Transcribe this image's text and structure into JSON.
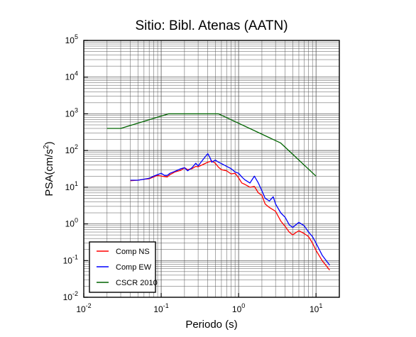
{
  "chart_data": {
    "type": "line",
    "title": "Sitio: Bibl. Atenas (AATN)",
    "xlabel": "Periodo (s)",
    "ylabel": {
      "base": "PSA(cm/s",
      "sup": "2",
      "tail": ")"
    },
    "xscale": "log",
    "yscale": "log",
    "xlim": [
      0.01,
      20
    ],
    "ylim": [
      0.01,
      100000
    ],
    "grid": true,
    "legend_position": "bottom-left",
    "x_ticks": [
      {
        "base": "10",
        "exp": "-2",
        "value": 0.01
      },
      {
        "base": "10",
        "exp": "-1",
        "value": 0.1
      },
      {
        "base": "10",
        "exp": "0",
        "value": 1
      },
      {
        "base": "10",
        "exp": "1",
        "value": 10
      }
    ],
    "y_ticks": [
      {
        "base": "10",
        "exp": "-2",
        "value": 0.01
      },
      {
        "base": "10",
        "exp": "-1",
        "value": 0.1
      },
      {
        "base": "10",
        "exp": "0",
        "value": 1
      },
      {
        "base": "10",
        "exp": "1",
        "value": 10
      },
      {
        "base": "10",
        "exp": "2",
        "value": 100
      },
      {
        "base": "10",
        "exp": "3",
        "value": 1000
      },
      {
        "base": "10",
        "exp": "4",
        "value": 10000
      },
      {
        "base": "10",
        "exp": "5",
        "value": 100000
      }
    ],
    "series": [
      {
        "name": "Comp NS",
        "color": "#ff0000",
        "points": [
          [
            0.04,
            15
          ],
          [
            0.05,
            15.5
          ],
          [
            0.06,
            16.5
          ],
          [
            0.07,
            17
          ],
          [
            0.08,
            19
          ],
          [
            0.09,
            21
          ],
          [
            0.1,
            20
          ],
          [
            0.12,
            19
          ],
          [
            0.13,
            22
          ],
          [
            0.15,
            26
          ],
          [
            0.18,
            29
          ],
          [
            0.2,
            34
          ],
          [
            0.22,
            30
          ],
          [
            0.25,
            32
          ],
          [
            0.28,
            37
          ],
          [
            0.3,
            36
          ],
          [
            0.35,
            42
          ],
          [
            0.4,
            48
          ],
          [
            0.45,
            52
          ],
          [
            0.5,
            45
          ],
          [
            0.55,
            35
          ],
          [
            0.6,
            30
          ],
          [
            0.7,
            28
          ],
          [
            0.8,
            23
          ],
          [
            0.9,
            24
          ],
          [
            1.0,
            18
          ],
          [
            1.1,
            13
          ],
          [
            1.2,
            12
          ],
          [
            1.4,
            10
          ],
          [
            1.6,
            10.5
          ],
          [
            1.8,
            7
          ],
          [
            2.0,
            6
          ],
          [
            2.2,
            3.5
          ],
          [
            2.5,
            2.8
          ],
          [
            3.0,
            2.2
          ],
          [
            3.5,
            1.2
          ],
          [
            4.0,
            0.85
          ],
          [
            4.5,
            0.6
          ],
          [
            5.0,
            0.5
          ],
          [
            5.5,
            0.58
          ],
          [
            6.0,
            0.65
          ],
          [
            7.0,
            0.55
          ],
          [
            8.0,
            0.45
          ],
          [
            9.0,
            0.3
          ],
          [
            10.0,
            0.19
          ],
          [
            12.0,
            0.1
          ],
          [
            15.0,
            0.055
          ]
        ]
      },
      {
        "name": "Comp EW",
        "color": "#0000ff",
        "points": [
          [
            0.04,
            15.5
          ],
          [
            0.05,
            15.5
          ],
          [
            0.06,
            16.5
          ],
          [
            0.07,
            17.5
          ],
          [
            0.08,
            20
          ],
          [
            0.09,
            22
          ],
          [
            0.1,
            24
          ],
          [
            0.11,
            21
          ],
          [
            0.12,
            21
          ],
          [
            0.13,
            24
          ],
          [
            0.15,
            27
          ],
          [
            0.18,
            32
          ],
          [
            0.2,
            34
          ],
          [
            0.22,
            28
          ],
          [
            0.25,
            34
          ],
          [
            0.28,
            45
          ],
          [
            0.3,
            38
          ],
          [
            0.35,
            58
          ],
          [
            0.38,
            72
          ],
          [
            0.4,
            82
          ],
          [
            0.43,
            62
          ],
          [
            0.45,
            48
          ],
          [
            0.5,
            55
          ],
          [
            0.55,
            48
          ],
          [
            0.6,
            44
          ],
          [
            0.7,
            37
          ],
          [
            0.8,
            32
          ],
          [
            0.9,
            26
          ],
          [
            1.0,
            24
          ],
          [
            1.1,
            19
          ],
          [
            1.2,
            16
          ],
          [
            1.4,
            13
          ],
          [
            1.6,
            20
          ],
          [
            1.8,
            13
          ],
          [
            2.0,
            8
          ],
          [
            2.2,
            5
          ],
          [
            2.5,
            4.2
          ],
          [
            2.8,
            5.5
          ],
          [
            3.0,
            3.5
          ],
          [
            3.5,
            2.0
          ],
          [
            4.0,
            1.5
          ],
          [
            4.5,
            0.95
          ],
          [
            5.0,
            0.8
          ],
          [
            5.5,
            0.95
          ],
          [
            6.0,
            1.1
          ],
          [
            7.0,
            0.9
          ],
          [
            8.0,
            0.6
          ],
          [
            9.0,
            0.45
          ],
          [
            10.0,
            0.3
          ],
          [
            12.0,
            0.14
          ],
          [
            15.0,
            0.075
          ]
        ]
      },
      {
        "name": "CSCR 2010",
        "color": "#006400",
        "points": [
          [
            0.02,
            400
          ],
          [
            0.03,
            400
          ],
          [
            0.125,
            1000
          ],
          [
            0.55,
            1000
          ],
          [
            3.5,
            160
          ],
          [
            10.0,
            20
          ]
        ]
      }
    ]
  }
}
